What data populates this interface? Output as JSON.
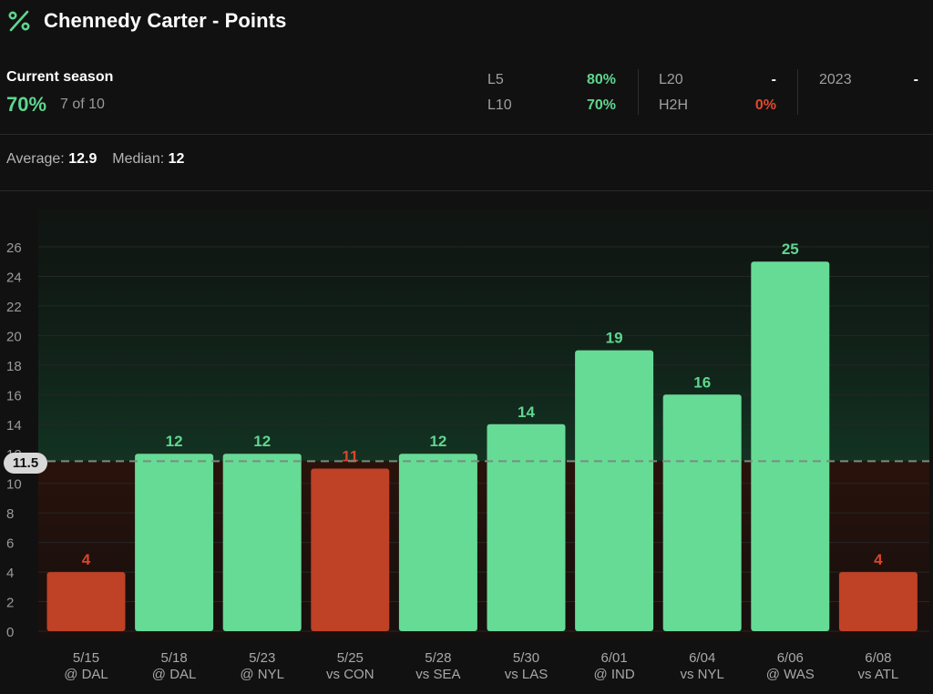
{
  "header": {
    "title": "Chennedy Carter - Points",
    "icon": "percent-icon",
    "accent": "#5fd68f"
  },
  "season": {
    "label": "Current season",
    "hit_pct": "70%",
    "hit_count": "7 of 10"
  },
  "splits": [
    {
      "label": "L5",
      "value": "80%",
      "status": "good"
    },
    {
      "label": "L10",
      "value": "70%",
      "status": "good"
    },
    {
      "label": "L20",
      "value": "-",
      "status": "neutral"
    },
    {
      "label": "H2H",
      "value": "0%",
      "status": "bad"
    },
    {
      "label": "2023",
      "value": "-",
      "status": "neutral"
    }
  ],
  "summary": {
    "average_label": "Average:",
    "average_value": "12.9",
    "median_label": "Median:",
    "median_value": "12"
  },
  "colors": {
    "over": "#66db95",
    "under": "#bf4126",
    "over_text": "#5fd68f",
    "under_text": "#d9462b",
    "background": "#111111"
  },
  "chart_data": {
    "type": "bar",
    "categories": [
      {
        "date": "5/15",
        "opp": "@ DAL"
      },
      {
        "date": "5/18",
        "opp": "@ DAL"
      },
      {
        "date": "5/23",
        "opp": "@ NYL"
      },
      {
        "date": "5/25",
        "opp": "vs CON"
      },
      {
        "date": "5/28",
        "opp": "vs SEA"
      },
      {
        "date": "5/30",
        "opp": "vs LAS"
      },
      {
        "date": "6/01",
        "opp": "@ IND"
      },
      {
        "date": "6/04",
        "opp": "vs NYL"
      },
      {
        "date": "6/06",
        "opp": "@ WAS"
      },
      {
        "date": "6/08",
        "opp": "vs ATL"
      }
    ],
    "values": [
      4,
      12,
      12,
      11,
      12,
      14,
      19,
      16,
      25,
      4
    ],
    "line": 11.5,
    "line_label": "11.5",
    "ylim": [
      0,
      26
    ],
    "yticks": [
      0,
      2,
      4,
      6,
      8,
      10,
      12,
      14,
      16,
      18,
      20,
      22,
      24,
      26
    ],
    "grid": true
  }
}
